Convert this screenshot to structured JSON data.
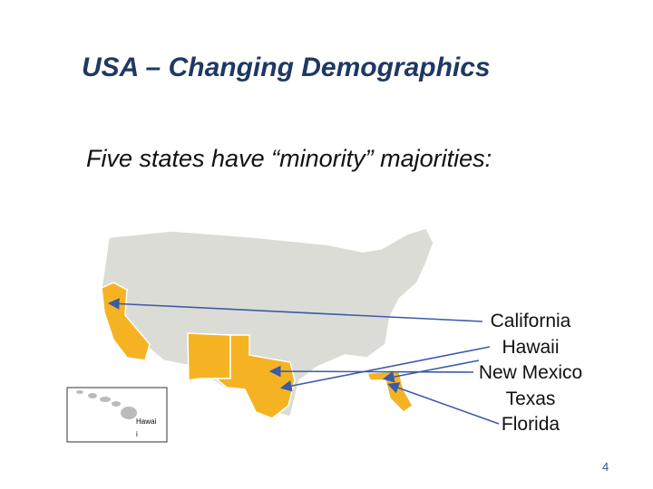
{
  "header": {
    "title": "USA – Changing Demographics"
  },
  "subtitle": "Five states have “minority” majorities:",
  "states": [
    "California",
    "Hawaii",
    "New Mexico",
    "Texas",
    "Florida"
  ],
  "inset_label": [
    "Hawai",
    "i"
  ],
  "page_number": "4"
}
